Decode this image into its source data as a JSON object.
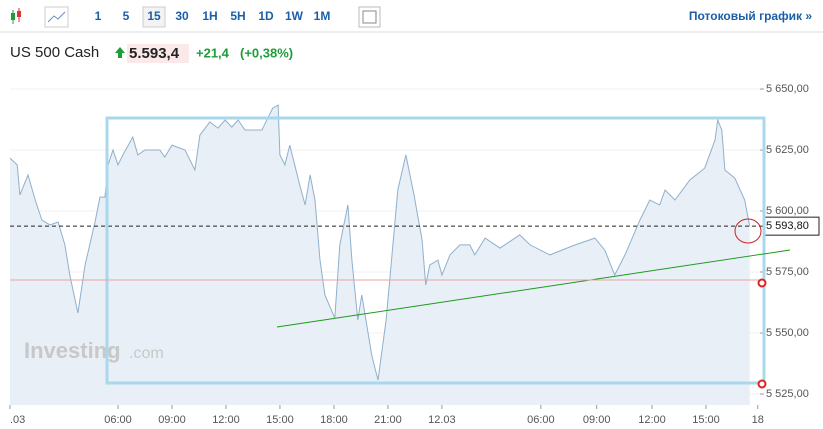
{
  "toolbar": {
    "intervals": [
      "1",
      "5",
      "15",
      "30",
      "1H",
      "5H",
      "1D",
      "1W",
      "1M"
    ],
    "selected": 2,
    "stream_link": "Потоковый график »"
  },
  "header": {
    "symbol": "US 500 Cash",
    "price": "5.593,4",
    "change": "+21,4",
    "change_pct": "(+0,38%)"
  },
  "watermark": {
    "brand": "Investing",
    "suffix": ".com"
  },
  "chart_data": {
    "type": "line",
    "color": "#8fb0cc",
    "fill": "#e8eff6",
    "x": [
      0,
      1.6,
      2.2,
      4.0,
      5.6,
      7.1,
      8.9,
      10.7,
      12.2,
      13.3,
      15.1,
      16.7,
      18.9,
      20.0,
      21.1,
      21.8,
      22.9,
      24.0,
      25.1,
      27.3,
      28.4,
      30.0,
      33.3,
      34.4,
      36.0,
      38.9,
      41.1,
      42.2,
      44.4,
      46.2,
      47.8,
      49.3,
      50.7,
      52.2,
      56.0,
      58.4,
      59.6,
      60.0,
      61.1,
      62.2,
      64.4,
      65.6,
      66.7,
      67.8,
      68.9,
      70.0,
      72.2,
      73.3,
      75.1,
      76.0,
      77.3,
      78.2,
      80.4,
      81.8,
      83.6,
      85.1,
      86.2,
      88.0,
      89.8,
      91.6,
      92.4,
      93.3,
      95.1,
      96.0,
      97.8,
      100.0,
      102.2,
      103.3,
      105.6,
      108.9,
      113.3,
      115.6,
      120.0,
      125.6,
      130.0,
      132.2,
      134.4,
      136.7,
      140.0,
      142.2,
      144.4,
      145.6,
      147.8,
      151.1,
      154.4,
      156.7,
      157.3,
      158.2,
      158.9,
      161.1,
      163.3,
      164.4
    ],
    "values": [
      5621.7,
      5618.9,
      5606.6,
      5614.8,
      5604.5,
      5596.3,
      5594.3,
      5595.5,
      5586.1,
      5573.8,
      5558.2,
      5577.9,
      5595.5,
      5605.7,
      5605.7,
      5618.9,
      5625.0,
      5618.9,
      5623.0,
      5630.3,
      5623.0,
      5625.0,
      5625.0,
      5622.1,
      5627.0,
      5625.0,
      5616.8,
      5631.1,
      5636.5,
      5634.0,
      5637.3,
      5634.4,
      5637.3,
      5633.2,
      5633.2,
      5642.2,
      5643.4,
      5623.0,
      5618.9,
      5627.0,
      5610.7,
      5602.5,
      5614.8,
      5604.5,
      5579.9,
      5565.6,
      5556.1,
      5586.1,
      5602.5,
      5579.9,
      5555.3,
      5565.6,
      5541.0,
      5530.7,
      5555.3,
      5586.1,
      5608.6,
      5623.0,
      5606.6,
      5588.1,
      5569.7,
      5577.9,
      5579.9,
      5573.8,
      5582.0,
      5586.1,
      5586.1,
      5582.0,
      5588.9,
      5584.8,
      5590.2,
      5586.1,
      5582.0,
      5586.1,
      5588.9,
      5584.0,
      5573.8,
      5582.0,
      5596.3,
      5604.5,
      5602.5,
      5608.6,
      5604.5,
      5612.7,
      5617.6,
      5629.1,
      5637.3,
      5633.2,
      5616.8,
      5613.5,
      5604.5,
      5593.8
    ],
    "xlim": [
      0,
      166.7
    ],
    "xticks": [
      {
        "value": 0,
        "label": ".03"
      },
      {
        "value": 24,
        "label": "06:00"
      },
      {
        "value": 36,
        "label": "09:00"
      },
      {
        "value": 48,
        "label": "12:00"
      },
      {
        "value": 60,
        "label": "15:00"
      },
      {
        "value": 72,
        "label": "18:00"
      },
      {
        "value": 84,
        "label": "21:00"
      },
      {
        "value": 96,
        "label": "12.03"
      },
      {
        "value": 118,
        "label": "06:00"
      },
      {
        "value": 130.4,
        "label": "09:00"
      },
      {
        "value": 142.7,
        "label": "12:00"
      },
      {
        "value": 154.7,
        "label": "15:00"
      },
      {
        "value": 166.2,
        "label": "18"
      }
    ],
    "ylim": [
      5520.5,
      5653.7
    ],
    "yticks": [
      {
        "value": 5525,
        "label": "5 525,00"
      },
      {
        "value": 5550,
        "label": "5 550,00"
      },
      {
        "value": 5575,
        "label": "5 575,00"
      },
      {
        "value": 5600,
        "label": "5 600,00"
      },
      {
        "value": 5625,
        "label": "5 625,00"
      },
      {
        "value": 5650,
        "label": "5 650,00"
      }
    ],
    "last_price": {
      "value": 5593.8,
      "label": "5 593,80"
    }
  }
}
